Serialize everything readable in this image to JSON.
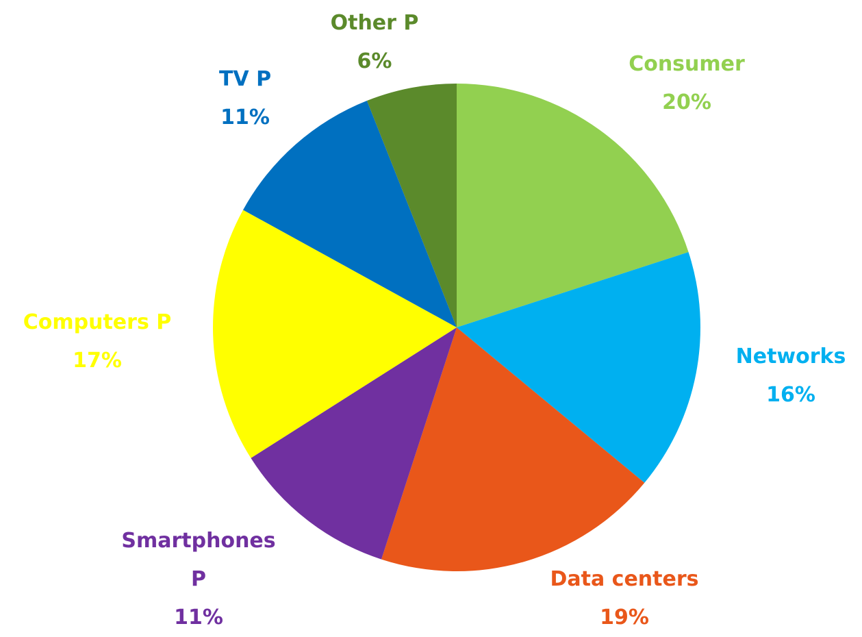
{
  "chart_data": {
    "type": "pie",
    "categories": [
      "Consumer",
      "Networks",
      "Data centers",
      "Smartphones P",
      "Computers P",
      "TV P",
      "Other P"
    ],
    "values": [
      20,
      16,
      19,
      11,
      17,
      11,
      6
    ],
    "value_labels": [
      "20%",
      "16%",
      "19%",
      "11%",
      "17%",
      "11%",
      "6%"
    ],
    "colors": [
      "#92d050",
      "#00b0f0",
      "#e9571a",
      "#7030a0",
      "#ffff00",
      "#0070c0",
      "#5b8a2b"
    ]
  }
}
